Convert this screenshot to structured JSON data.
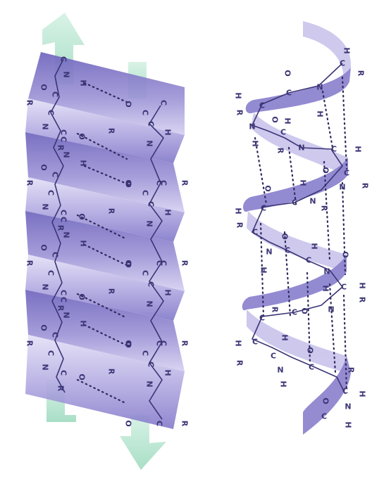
{
  "colors": {
    "sheet_light": "#c9c3ea",
    "sheet_mid": "#9d94d6",
    "sheet_dark": "#7a70c4",
    "arrow": "#bfe8d6",
    "helix_front": "#8e85cf",
    "helix_back": "#cbc6ec",
    "atom": "#3b3576"
  },
  "atoms": {
    "carbon": "C",
    "nitrogen": "N",
    "oxygen": "O",
    "hydrogen": "H",
    "side_chain": "R"
  }
}
